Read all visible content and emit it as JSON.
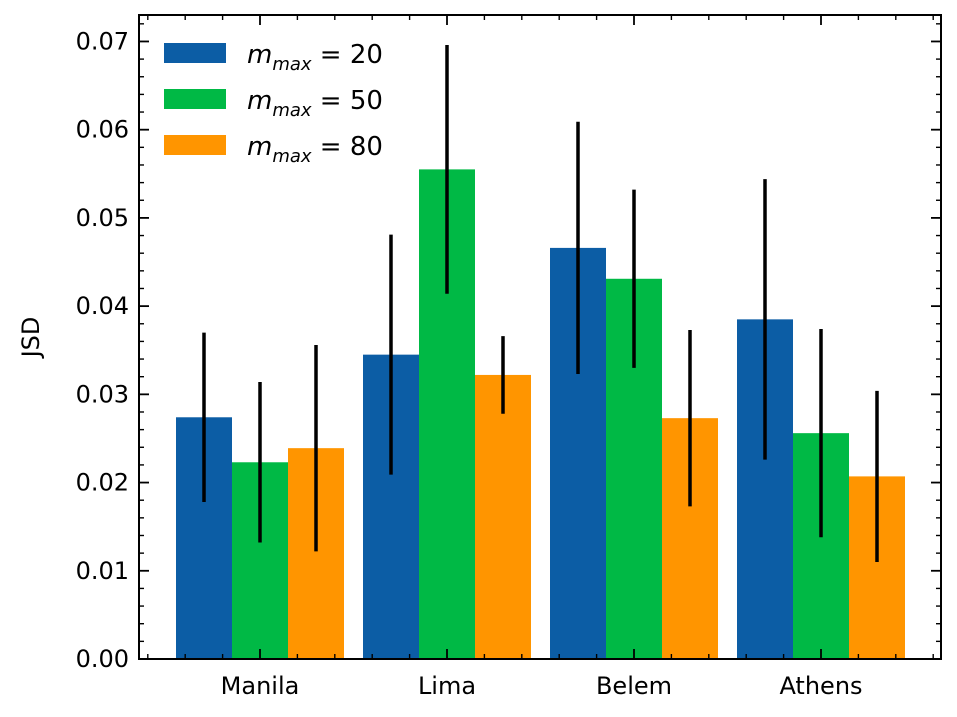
{
  "chart_data": {
    "type": "bar",
    "categories": [
      "Manila",
      "Lima",
      "Belem",
      "Athens"
    ],
    "ylabel": "JSD",
    "xlabel": "",
    "ylim": [
      0,
      0.073
    ],
    "yticks": [
      "0.00",
      "0.01",
      "0.02",
      "0.03",
      "0.04",
      "0.05",
      "0.06",
      "0.07"
    ],
    "legend_position": "top-left",
    "series": [
      {
        "name": "m_max = 20",
        "legend": {
          "var": "m",
          "sub": "max",
          "rest": " = 20"
        },
        "color": "#0C5DA5",
        "values": [
          0.0274,
          0.0345,
          0.0466,
          0.0385
        ],
        "errors": [
          0.0096,
          0.0136,
          0.0143,
          0.0159
        ]
      },
      {
        "name": "m_max = 50",
        "legend": {
          "var": "m",
          "sub": "max",
          "rest": " = 50"
        },
        "color": "#00B945",
        "values": [
          0.0223,
          0.0555,
          0.0431,
          0.0256
        ],
        "errors": [
          0.0091,
          0.0141,
          0.0101,
          0.0118
        ]
      },
      {
        "name": "m_max = 80",
        "legend": {
          "var": "m",
          "sub": "max",
          "rest": " = 80"
        },
        "color": "#FF9500",
        "values": [
          0.0239,
          0.0322,
          0.0273,
          0.0207
        ],
        "errors": [
          0.0117,
          0.0044,
          0.01,
          0.0097
        ]
      }
    ],
    "error_color": "#000000"
  }
}
